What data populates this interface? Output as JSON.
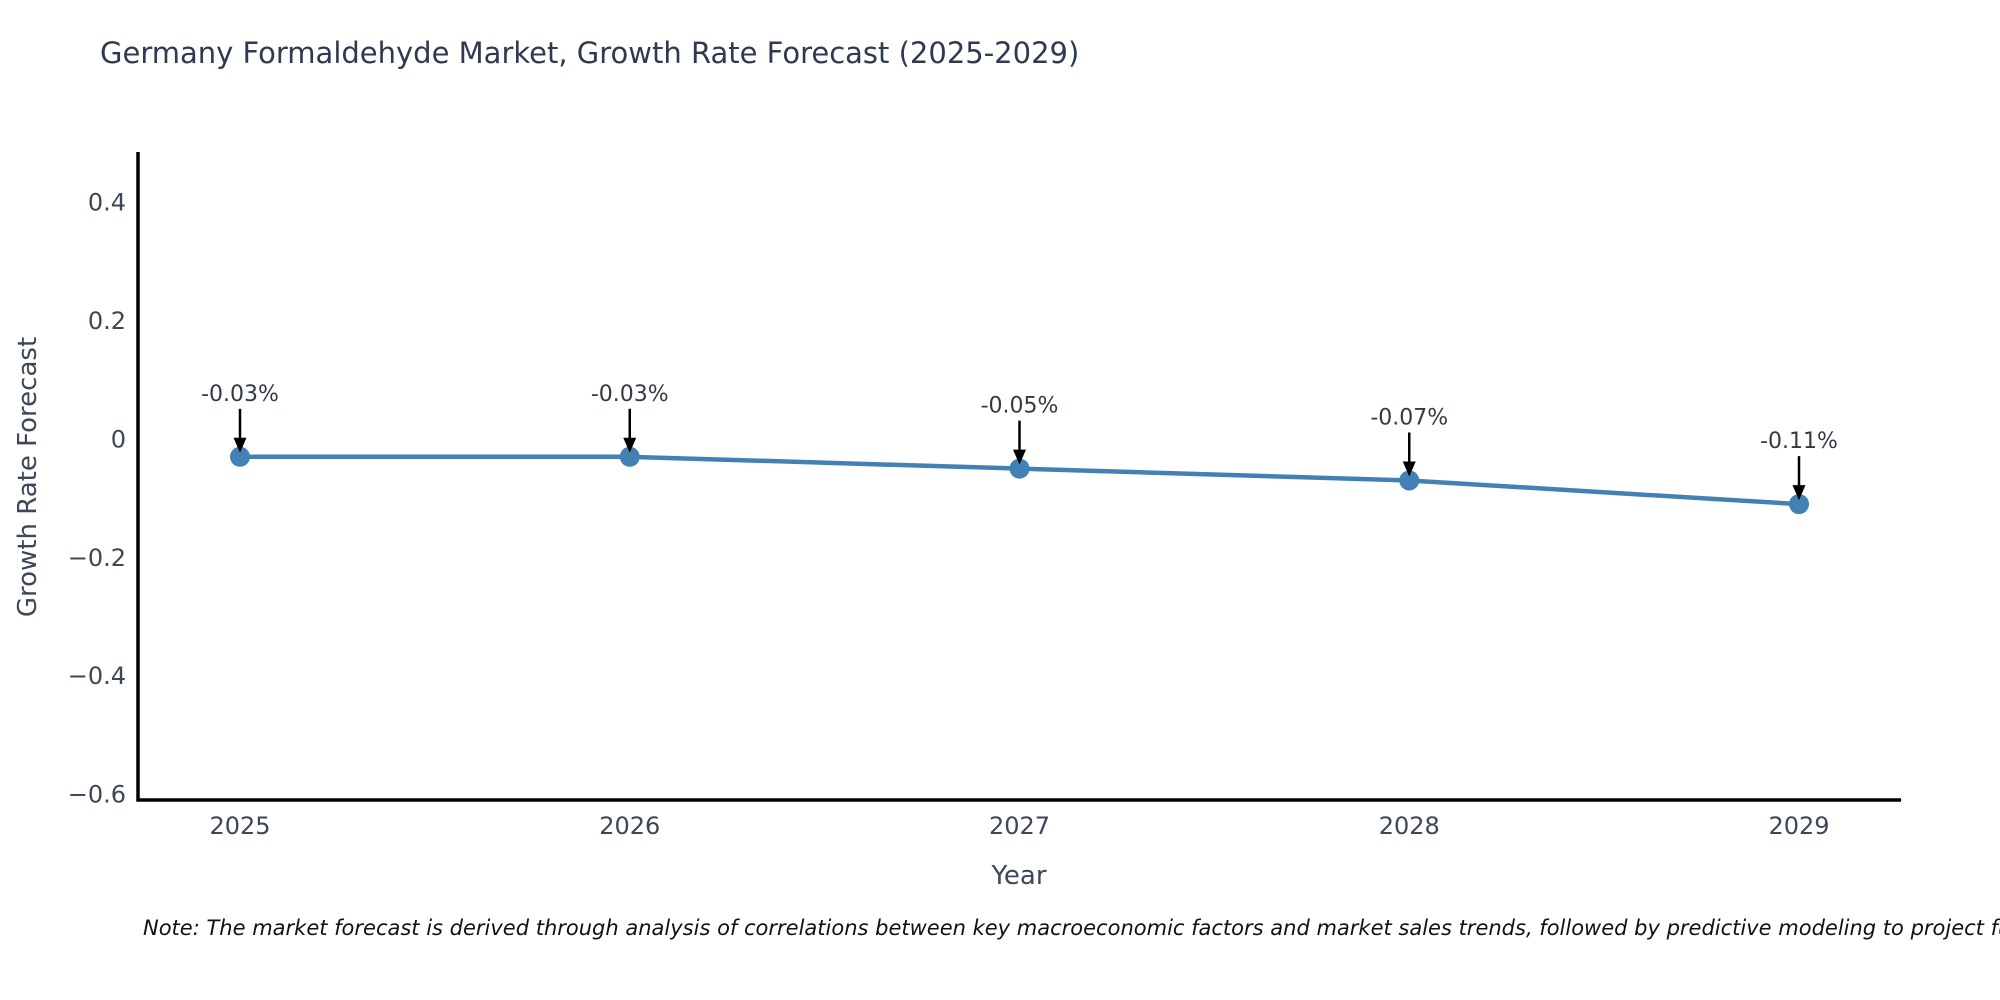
{
  "chart_data": {
    "type": "line",
    "title": "Germany Formaldehyde Market, Growth Rate Forecast (2025-2029)",
    "xlabel": "Year",
    "ylabel": "Growth Rate Forecast",
    "categories": [
      "2025",
      "2026",
      "2027",
      "2028",
      "2029"
    ],
    "values": [
      -0.03,
      -0.03,
      -0.05,
      -0.07,
      -0.11
    ],
    "point_labels": [
      "-0.03%",
      "-0.03%",
      "-0.05%",
      "-0.07%",
      "-0.11%"
    ],
    "ytick_values": [
      0.4,
      0.2,
      0,
      -0.2,
      -0.4,
      -0.6
    ],
    "ytick_labels": [
      "0.4",
      "0.2",
      "0",
      "−0.2",
      "−0.4",
      "−0.6"
    ],
    "ylim": [
      -0.61,
      0.48
    ],
    "grid": false,
    "legend_position": "none",
    "line_color": "#4381b4",
    "marker_color": "#4381b4",
    "axis_color": "#000000",
    "annotation_arrow_color": "#000000",
    "tick_label_color": "#3d4757",
    "annotation_text_color": "#333a44"
  },
  "note": {
    "text": "Note: The market forecast is derived through analysis of correlations between key macroeconomic factors and market sales trends, followed by predictive modeling to project future sa"
  }
}
